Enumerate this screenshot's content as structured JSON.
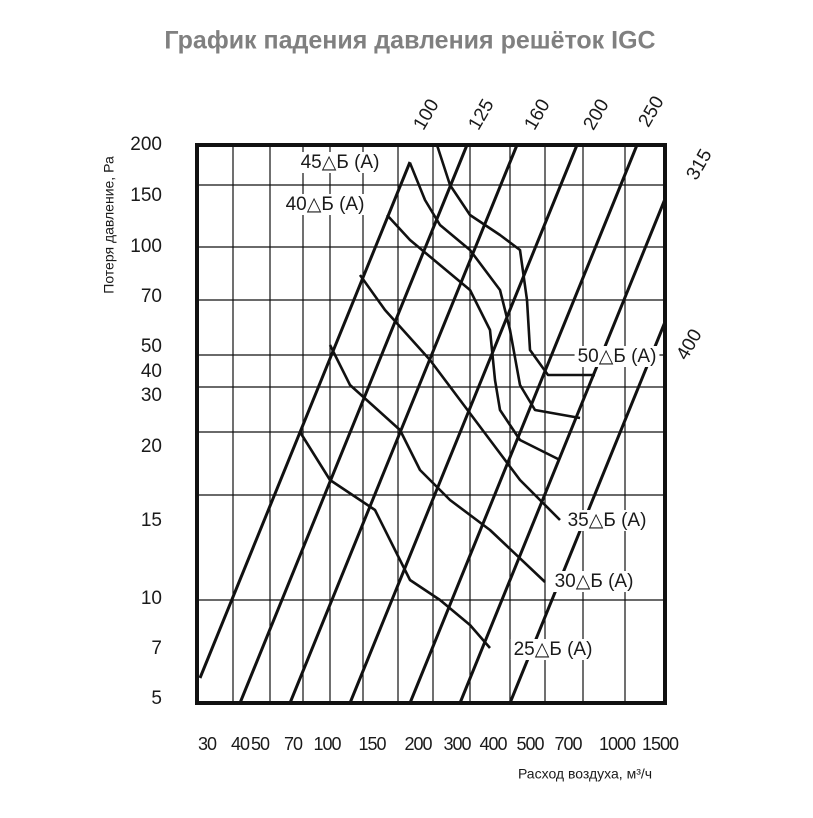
{
  "title": "График падения давления решёток IGC",
  "y_axis_label": "Потеря давление, Ра",
  "x_axis_label": "Расход воздуха, м³/ч",
  "y_ticks": [
    "200",
    "150",
    "100",
    "70",
    "50",
    "40",
    "30",
    "20",
    "15",
    "10",
    "7",
    "5"
  ],
  "x_ticks": [
    "30",
    "40",
    "50",
    "70",
    "100",
    "150",
    "200",
    "300",
    "400",
    "500",
    "700",
    "1000",
    "1500"
  ],
  "diameters": [
    "100",
    "125",
    "160",
    "200",
    "250",
    "315",
    "400"
  ],
  "noise_labels": [
    "45△Б (A)",
    "40△Б (A)",
    "50△Б (A)",
    "35△Б (A)",
    "30△Б (A)",
    "25△Б (A)"
  ]
}
